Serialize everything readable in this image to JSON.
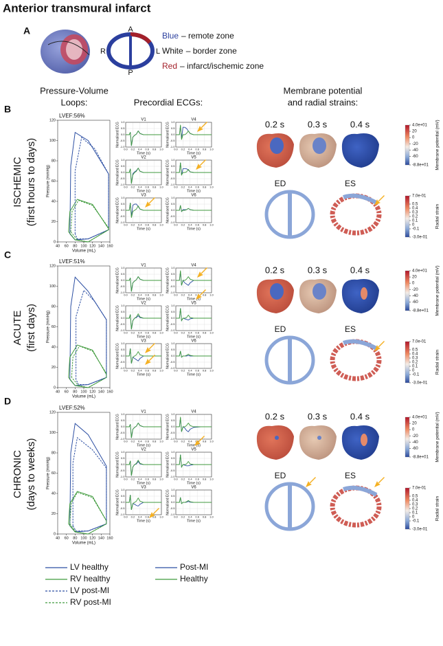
{
  "title": "Anterior transmural infarct",
  "panel_a": {
    "label": "A",
    "orientation": [
      "A",
      "R",
      "L",
      "P"
    ],
    "legend": [
      {
        "word": "Blue",
        "rest": "– remote zone",
        "color": "#2b3f9e"
      },
      {
        "word": "White",
        "rest": "– border zone",
        "color": "#111111"
      },
      {
        "word": "Red",
        "rest": "– infarct/ischemic zone",
        "color": "#a3202a"
      }
    ]
  },
  "headers": {
    "pv": [
      "Pressure-Volume",
      "Loops:"
    ],
    "ecg": [
      "Precordial ECGs:"
    ],
    "maps": [
      "Membrane potential",
      "and radial strains:"
    ]
  },
  "pv_axes": {
    "xlim": [
      40,
      160
    ],
    "xticks": [
      40,
      60,
      80,
      100,
      120,
      140,
      160
    ],
    "ylim": [
      0,
      120
    ],
    "yticks": [
      0,
      20,
      40,
      60,
      80,
      100,
      120
    ],
    "xlabel": "Volume (mL)",
    "ylabel": "Pressure (mmHg)"
  },
  "pv_legend": [
    {
      "name": "LV healthy",
      "color": "#2b4ea2",
      "dash": false
    },
    {
      "name": "RV healthy",
      "color": "#3f9a3c",
      "dash": false
    },
    {
      "name": "LV post-MI",
      "color": "#2b4ea2",
      "dash": true
    },
    {
      "name": "RV post-MI",
      "color": "#3f9a3c",
      "dash": true
    }
  ],
  "ecg_legend": [
    {
      "name": "Post-MI",
      "color": "#2b4ea2"
    },
    {
      "name": "Healthy",
      "color": "#3f9a3c"
    }
  ],
  "ecg_axes": {
    "x": [
      0,
      0.1,
      0.13,
      0.16,
      0.2,
      0.25,
      0.3,
      0.35,
      0.4,
      0.5,
      0.7,
      1.0
    ],
    "xlim": [
      0,
      1
    ],
    "ylim": [
      -1,
      1
    ],
    "xticks": [
      {
        "value": 0,
        "label": "0.0"
      },
      0.2,
      0.4,
      0.6,
      0.8,
      {
        "value": 1,
        "label": "1.0"
      }
    ],
    "yticks": [
      {
        "value": -1,
        "label": "-1.0"
      },
      -0.5,
      {
        "value": 0,
        "label": "0.0"
      },
      0.5,
      {
        "value": 1,
        "label": "1.0"
      }
    ],
    "xlabel": "Time (s)",
    "ylabel": "Normalised ECG"
  },
  "membrane_colorbar": {
    "label": "Membrane potential (mV)",
    "ticks": [
      {
        "value": 40,
        "label": "4.0e+01"
      },
      20,
      0,
      -20,
      -40,
      -60,
      {
        "value": -88,
        "label": "-8.8e+01"
      }
    ]
  },
  "strain_colorbar": {
    "label": "Radial strain",
    "ticks": [
      {
        "value": 0.7,
        "label": "7.0e-01"
      },
      0.5,
      0.4,
      0.3,
      0.2,
      0.1,
      0,
      -0.1,
      {
        "value": -0.3,
        "label": "-3.0e-01"
      }
    ]
  },
  "rows": [
    {
      "label": "B",
      "name": "ISCHEMIC",
      "subtitle": "(first hours to days)",
      "snapshots": [
        "0.2 s",
        "0.3 s",
        "0.4 s"
      ],
      "strain": [
        "ED",
        "ES"
      ],
      "pv": {
        "title": "LVEF:56%",
        "series": [
          {
            "x": [
              68,
              70,
              80,
              110,
              157,
              157,
              110,
              80,
              68
            ],
            "values": [
              8,
              75,
              108,
              100,
              67,
              12,
              3,
              2,
              8
            ]
          },
          {
            "x": [
              65,
              68,
              85,
              120,
              157,
              157,
              110,
              80,
              65
            ],
            "values": [
              10,
              30,
              42,
              37,
              13,
              12,
              0,
              2,
              10
            ]
          },
          {
            "x": [
              80,
              80,
              95,
              125,
              157,
              157,
              110,
              85,
              80
            ],
            "values": [
              8,
              70,
              103,
              92,
              67,
              12,
              3,
              3,
              8
            ]
          },
          {
            "x": [
              70,
              73,
              88,
              120,
              157,
              157,
              110,
              85,
              70
            ],
            "values": [
              10,
              30,
              41,
              36,
              14,
              12,
              0,
              2,
              10
            ]
          }
        ]
      },
      "ecg": [
        {
          "title": "V1",
          "post_mi": [
            0,
            0,
            0.2,
            -0.9,
            -0.2,
            -0.05,
            0.05,
            0.3,
            0.1,
            0,
            0,
            0
          ],
          "healthy": [
            0,
            0,
            0.2,
            -0.9,
            -0.2,
            -0.05,
            0.05,
            0.3,
            0.1,
            0,
            0,
            0
          ]
        },
        {
          "title": "V4",
          "post_mi": [
            0,
            0,
            0.7,
            -0.3,
            0.6,
            0.6,
            0.5,
            0.3,
            0.1,
            0,
            0,
            0
          ],
          "healthy": [
            0,
            0,
            0.8,
            -0.4,
            0,
            0,
            0.1,
            0.3,
            0.1,
            0,
            0,
            0
          ]
        },
        {
          "title": "V2",
          "post_mi": [
            0,
            0,
            0.3,
            -0.9,
            -0.1,
            0.05,
            0.15,
            0.35,
            0.1,
            0,
            0,
            0
          ],
          "healthy": [
            0,
            0,
            0.3,
            -0.9,
            -0.2,
            0,
            0.1,
            0.35,
            0.1,
            0,
            0,
            0
          ]
        },
        {
          "title": "V5",
          "post_mi": [
            0,
            0,
            0.8,
            -0.2,
            0.3,
            0.3,
            0.3,
            0.2,
            0.05,
            0,
            0,
            0
          ],
          "healthy": [
            0,
            0,
            0.8,
            -0.2,
            0,
            0,
            0.05,
            0.25,
            0.05,
            0,
            0,
            0
          ]
        },
        {
          "title": "V3",
          "post_mi": [
            0,
            0,
            0.6,
            -0.5,
            0.4,
            0.5,
            0.5,
            0.3,
            0.1,
            0,
            0,
            0
          ],
          "healthy": [
            0,
            0,
            0.6,
            -0.6,
            -0.1,
            0,
            0.1,
            0.35,
            0.1,
            0,
            0,
            0
          ]
        },
        {
          "title": "V6",
          "post_mi": [
            0,
            0,
            0.4,
            -0.1,
            0.05,
            0.05,
            0.05,
            0.15,
            0.05,
            0,
            0,
            0
          ],
          "healthy": [
            0,
            0,
            0.4,
            -0.1,
            0,
            0,
            0.05,
            0.15,
            0.05,
            0,
            0,
            0
          ]
        }
      ]
    },
    {
      "label": "C",
      "name": "ACUTE",
      "subtitle": "(first days)",
      "snapshots": [
        "0.2 s",
        "0.3 s",
        "0.4 s"
      ],
      "strain": [
        "ED",
        "ES"
      ],
      "pv": {
        "title": "LVEF:51%",
        "series": [
          {
            "x": [
              68,
              70,
              80,
              110,
              152,
              152,
              110,
              80,
              68
            ],
            "values": [
              8,
              80,
              109,
              95,
              67,
              10,
              3,
              2,
              8
            ]
          },
          {
            "x": [
              65,
              68,
              85,
              120,
              152,
              152,
              110,
              80,
              65
            ],
            "values": [
              10,
              30,
              42,
              37,
              13,
              10,
              0,
              2,
              10
            ]
          },
          {
            "x": [
              82,
              82,
              100,
              125,
              152,
              152,
              110,
              88,
              82
            ],
            "values": [
              8,
              70,
              96,
              85,
              67,
              10,
              3,
              3,
              8
            ]
          },
          {
            "x": [
              72,
              75,
              90,
              120,
              152,
              152,
              110,
              88,
              72
            ],
            "values": [
              10,
              30,
              41,
              36,
              14,
              10,
              0,
              2,
              10
            ]
          }
        ]
      },
      "ecg": [
        {
          "title": "V1",
          "post_mi": [
            0,
            0,
            0.2,
            -0.9,
            -0.2,
            -0.05,
            0.05,
            0.3,
            0.1,
            0,
            0,
            0
          ],
          "healthy": [
            0,
            0,
            0.2,
            -0.9,
            -0.2,
            -0.05,
            0.05,
            0.3,
            0.1,
            0,
            0,
            0
          ]
        },
        {
          "title": "V4",
          "post_mi": [
            0,
            0,
            0.7,
            -0.4,
            0,
            -0.2,
            -0.3,
            -0.4,
            -0.2,
            0,
            0,
            0
          ],
          "healthy": [
            0,
            0,
            0.8,
            -0.4,
            0,
            0,
            0.1,
            0.3,
            0.1,
            0,
            0,
            0
          ]
        },
        {
          "title": "V2",
          "post_mi": [
            0,
            0,
            0.3,
            -0.9,
            -0.2,
            0,
            0.05,
            0.2,
            0.05,
            0,
            0,
            0
          ],
          "healthy": [
            0,
            0,
            0.3,
            -0.9,
            -0.2,
            0,
            0.1,
            0.35,
            0.1,
            0,
            0,
            0
          ]
        },
        {
          "title": "V5",
          "post_mi": [
            0,
            0,
            0.8,
            -0.2,
            0,
            -0.05,
            -0.1,
            -0.15,
            -0.05,
            0,
            0,
            0
          ],
          "healthy": [
            0,
            0,
            0.8,
            -0.2,
            0,
            0,
            0.05,
            0.25,
            0.05,
            0,
            0,
            0
          ]
        },
        {
          "title": "V3",
          "post_mi": [
            0,
            0,
            0.6,
            -0.6,
            -0.1,
            -0.2,
            -0.3,
            -0.4,
            -0.2,
            0,
            0,
            0
          ],
          "healthy": [
            0,
            0,
            0.6,
            -0.6,
            -0.1,
            0,
            0.1,
            0.35,
            0.1,
            0,
            0,
            0
          ]
        },
        {
          "title": "V6",
          "post_mi": [
            0,
            0,
            0.4,
            -0.1,
            0,
            0,
            0,
            0.05,
            0,
            0,
            0,
            0
          ],
          "healthy": [
            0,
            0,
            0.4,
            -0.1,
            0,
            0,
            0.05,
            0.15,
            0.05,
            0,
            0,
            0
          ]
        }
      ]
    },
    {
      "label": "D",
      "name": "CHRONIC",
      "subtitle": "(days to weeks)",
      "snapshots": [
        "0.2 s",
        "0.3 s",
        "0.4 s"
      ],
      "strain": [
        "ED",
        "ES"
      ],
      "pv": {
        "title": "LVEF:52%",
        "series": [
          {
            "x": [
              68,
              70,
              80,
              110,
              152,
              152,
              110,
              80,
              68
            ],
            "values": [
              8,
              80,
              109,
              98,
              67,
              10,
              3,
              2,
              8
            ]
          },
          {
            "x": [
              65,
              68,
              85,
              120,
              152,
              152,
              110,
              80,
              65
            ],
            "values": [
              10,
              30,
              42,
              37,
              13,
              10,
              0,
              2,
              10
            ]
          },
          {
            "x": [
              75,
              75,
              85,
              120,
              152,
              152,
              110,
              82,
              75
            ],
            "values": [
              8,
              70,
              95,
              83,
              65,
              10,
              3,
              3,
              8
            ]
          },
          {
            "x": [
              68,
              71,
              85,
              120,
              152,
              152,
              110,
              82,
              68
            ],
            "values": [
              10,
              30,
              41,
              36,
              13,
              10,
              0,
              2,
              10
            ]
          }
        ]
      },
      "ecg": [
        {
          "title": "V1",
          "post_mi": [
            0,
            0,
            0.2,
            -0.9,
            -0.2,
            -0.05,
            0.05,
            0.3,
            0.1,
            0,
            0,
            0
          ],
          "healthy": [
            0,
            0,
            0.2,
            -0.9,
            -0.2,
            -0.05,
            0.05,
            0.3,
            0.1,
            0,
            0,
            0
          ]
        },
        {
          "title": "V4",
          "post_mi": [
            0,
            0,
            0.7,
            -0.4,
            0,
            -0.1,
            -0.3,
            -0.4,
            -0.2,
            -0.05,
            0,
            0
          ],
          "healthy": [
            0,
            0,
            0.8,
            -0.4,
            0,
            0,
            0.1,
            0.3,
            0.1,
            0,
            0,
            0
          ]
        },
        {
          "title": "V2",
          "post_mi": [
            0,
            0,
            0.3,
            -0.9,
            -0.2,
            0,
            0.05,
            0.25,
            0.05,
            0,
            0,
            0
          ],
          "healthy": [
            0,
            0,
            0.3,
            -0.9,
            -0.2,
            0,
            0.1,
            0.35,
            0.1,
            0,
            0,
            0
          ]
        },
        {
          "title": "V5",
          "post_mi": [
            0,
            0,
            0.8,
            -0.2,
            0,
            -0.05,
            -0.1,
            -0.1,
            -0.05,
            0,
            0,
            0
          ],
          "healthy": [
            0,
            0,
            0.8,
            -0.2,
            0,
            0,
            0.05,
            0.25,
            0.05,
            0,
            0,
            0
          ]
        },
        {
          "title": "V3",
          "post_mi": [
            0,
            0,
            0.6,
            -0.6,
            -0.1,
            -0.15,
            -0.25,
            -0.3,
            -0.15,
            0,
            0,
            0
          ],
          "healthy": [
            0,
            0,
            0.6,
            -0.6,
            -0.1,
            0,
            0.1,
            0.35,
            0.1,
            0,
            0,
            0
          ]
        },
        {
          "title": "V6",
          "post_mi": [
            0,
            0,
            0.4,
            -0.1,
            0,
            0,
            0.02,
            0.08,
            0.02,
            0,
            0,
            0
          ],
          "healthy": [
            0,
            0,
            0.4,
            -0.1,
            0,
            0,
            0.05,
            0.15,
            0.05,
            0,
            0,
            0
          ]
        }
      ]
    }
  ]
}
